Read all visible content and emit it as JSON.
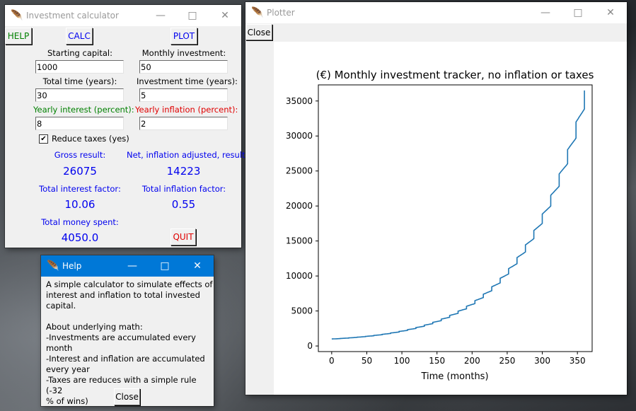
{
  "calculator": {
    "title": "Investment calculator",
    "buttons": {
      "help": "HELP",
      "calc": "CALC",
      "plot": "PLOT",
      "quit": "QUIT"
    },
    "labels": {
      "starting_capital": "Starting capital:",
      "monthly_investment": "Monthly investment:",
      "total_time": "Total time (years):",
      "investment_time": "Investment time (years):",
      "yearly_interest": "Yearly interest (percent):",
      "yearly_inflation": "Yearly inflation (percent):",
      "reduce_taxes": "Reduce taxes (yes)",
      "gross_result": "Gross result:",
      "net_result": "Net, inflation adjusted, result:",
      "total_interest_factor": "Total interest factor:",
      "total_inflation_factor": "Total inflation factor:",
      "total_money_spent": "Total money spent:"
    },
    "inputs": {
      "starting_capital": "1000",
      "monthly_investment": "50",
      "total_time": "30",
      "investment_time": "5",
      "yearly_interest": "8",
      "yearly_inflation": "2"
    },
    "reduce_taxes_checked": true,
    "results": {
      "gross": "26075",
      "net": "14223",
      "interest_factor": "10.06",
      "inflation_factor": "0.55",
      "money_spent": "4050.0"
    },
    "colors": {
      "blue": "#0000ee",
      "green": "#008000",
      "red": "#e00000"
    }
  },
  "help": {
    "title": "Help",
    "text": "A simple calculator to simulate effects of\ninterest and inflation to total invested\ncapital.\n\nAbout underlying math:\n-Investments are accumulated every month\n-Interest and inflation are accumulated\nevery year\n-Taxes are reduces with a simple rule (-32\n% of wins)",
    "close": "Close"
  },
  "plotter": {
    "title": "Plotter",
    "close": "Close",
    "chart_data": {
      "type": "line",
      "title": "(€) Monthly investment tracker, no inflation or taxes",
      "xlabel": "Time (months)",
      "ylabel": "",
      "xlim": [
        -19,
        371
      ],
      "ylim": [
        -800,
        37300
      ],
      "xticks": [
        0,
        50,
        100,
        150,
        200,
        250,
        300,
        350
      ],
      "yticks": [
        0,
        5000,
        10000,
        15000,
        20000,
        25000,
        30000,
        35000
      ],
      "line_color": "#1f77b4",
      "grid": false,
      "series": [
        {
          "x": [
            0,
            360
          ],
          "annual_interest_rate": 0.08,
          "starting_value": 1000,
          "monthly_increment": 50,
          "end_value": 36500
        }
      ]
    }
  },
  "icons": {
    "feather": "tk-feather-icon"
  }
}
